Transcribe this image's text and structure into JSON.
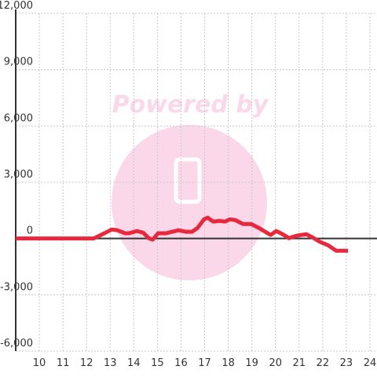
{
  "chart_data": {
    "type": "line",
    "watermark": "Powered by",
    "x": [
      9,
      12.3,
      12.63,
      13.07,
      13.3,
      13.63,
      13.8,
      14.13,
      14.4,
      14.63,
      14.8,
      15.03,
      15.37,
      15.63,
      15.9,
      16.2,
      16.47,
      16.7,
      16.97,
      17.13,
      17.37,
      17.63,
      17.87,
      18.07,
      18.3,
      18.63,
      18.97,
      19.3,
      19.63,
      19.8,
      20.03,
      20.3,
      20.57,
      20.9,
      21.3,
      21.57,
      21.9,
      22.23,
      22.57,
      23.07
    ],
    "series": [
      {
        "color": "#e8283c",
        "values": [
          0,
          0,
          200,
          480,
          440,
          280,
          280,
          400,
          310,
          20,
          -60,
          280,
          280,
          360,
          440,
          360,
          360,
          560,
          1020,
          1110,
          900,
          940,
          900,
          1020,
          980,
          770,
          770,
          560,
          310,
          190,
          400,
          230,
          20,
          150,
          230,
          60,
          -190,
          -360,
          -650,
          -650
        ]
      }
    ],
    "xlim": [
      9,
      24.3
    ],
    "xticks": [
      10,
      11,
      12,
      13,
      14,
      15,
      16,
      17,
      18,
      19,
      20,
      21,
      22,
      23,
      24
    ],
    "ylim": [
      -6000,
      12000
    ],
    "yticks": [
      {
        "value": -6000,
        "label": "-6,000"
      },
      {
        "value": -3000,
        "label": "-3,000"
      },
      0,
      {
        "value": 3000,
        "label": "3,000"
      },
      {
        "value": 6000,
        "label": "6,000"
      },
      {
        "value": 9000,
        "label": "9,000"
      },
      {
        "value": 12000,
        "label": "12,000"
      }
    ],
    "grid": true
  }
}
